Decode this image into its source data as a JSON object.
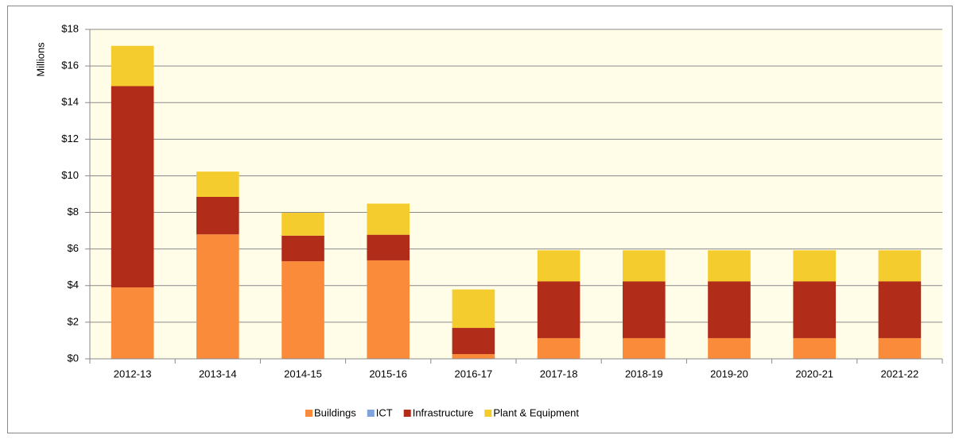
{
  "chart_data": {
    "type": "stacked_bar",
    "y_label": "Millions",
    "categories": [
      "2012-13",
      "2013-14",
      "2014-15",
      "2015-16",
      "2016-17",
      "2017-18",
      "2018-19",
      "2019-20",
      "2020-21",
      "2021-22"
    ],
    "series": [
      {
        "name": "Buildings",
        "color": "#f98b3a",
        "values": [
          3.9,
          6.8,
          5.33,
          5.38,
          0.26,
          1.13,
          1.13,
          1.13,
          1.13,
          1.13
        ]
      },
      {
        "name": "ICT",
        "color": "#7fa3dc",
        "values": [
          0,
          0,
          0,
          0,
          0,
          0,
          0,
          0,
          0,
          0
        ]
      },
      {
        "name": "Infrastructure",
        "color": "#b22c1a",
        "values": [
          11.0,
          2.05,
          1.4,
          1.4,
          1.43,
          3.1,
          3.1,
          3.1,
          3.1,
          3.1
        ]
      },
      {
        "name": "Plant & Equipment",
        "color": "#f5cc2e",
        "values": [
          2.2,
          1.38,
          1.25,
          1.7,
          2.1,
          1.7,
          1.7,
          1.7,
          1.7,
          1.7
        ]
      }
    ],
    "ylim": [
      0,
      18
    ],
    "yticks": [
      {
        "value": 0,
        "label": "$0"
      },
      {
        "value": 2,
        "label": "$2"
      },
      {
        "value": 4,
        "label": "$4"
      },
      {
        "value": 6,
        "label": "$6"
      },
      {
        "value": 8,
        "label": "$8"
      },
      {
        "value": 10,
        "label": "$10"
      },
      {
        "value": 12,
        "label": "$12"
      },
      {
        "value": 14,
        "label": "$14"
      },
      {
        "value": 16,
        "label": "$16"
      },
      {
        "value": 18,
        "label": "$18"
      }
    ],
    "grid": true,
    "legend": "bottom"
  }
}
